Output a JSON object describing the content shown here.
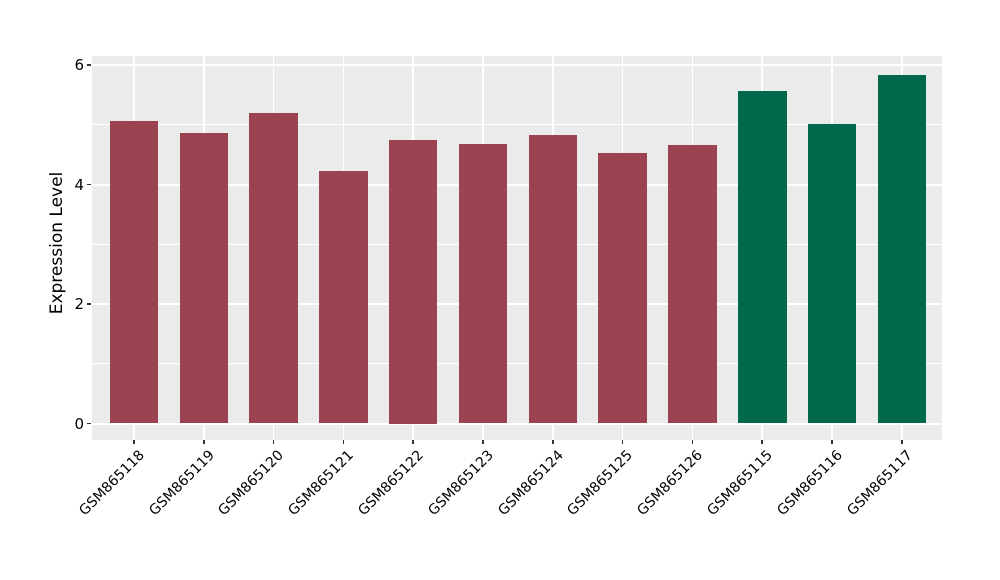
{
  "chart": {
    "background_color": "#FFFFFF",
    "panel_background_color": "#EBEBEB",
    "grid_color": "#FFFFFF",
    "tick_mark_color": "#333333",
    "text_color": "#000000"
  },
  "chart_data": {
    "type": "bar",
    "title": "",
    "xlabel": "",
    "ylabel": "Expression Level",
    "categories": [
      "GSM865118",
      "GSM865119",
      "GSM865120",
      "GSM865121",
      "GSM865122",
      "GSM865123",
      "GSM865124",
      "GSM865125",
      "GSM865126",
      "GSM865115",
      "GSM865116",
      "GSM865117"
    ],
    "values": [
      5.07,
      4.86,
      5.2,
      4.23,
      4.75,
      4.67,
      4.83,
      4.52,
      4.66,
      5.56,
      5.02,
      5.84
    ],
    "bar_colors": [
      "#9A4452",
      "#9A4452",
      "#9A4452",
      "#9A4452",
      "#9A4452",
      "#9A4452",
      "#9A4452",
      "#9A4452",
      "#9A4452",
      "#00694C",
      "#00694C",
      "#00694C"
    ],
    "color_groups": [
      {
        "color": "#9A4452",
        "categories": [
          "GSM865118",
          "GSM865119",
          "GSM865120",
          "GSM865121",
          "GSM865122",
          "GSM865123",
          "GSM865124",
          "GSM865125",
          "GSM865126"
        ]
      },
      {
        "color": "#00694C",
        "categories": [
          "GSM865115",
          "GSM865116",
          "GSM865117"
        ]
      }
    ],
    "ylim": [
      0,
      6
    ],
    "yticks": [
      0,
      2,
      4,
      6
    ],
    "yticks_minor": [
      1,
      3,
      5
    ],
    "ytick_labels": [
      "0",
      "2",
      "4",
      "6"
    ],
    "xtick_label_rotation_deg": 45,
    "grid": true,
    "legend": false
  }
}
